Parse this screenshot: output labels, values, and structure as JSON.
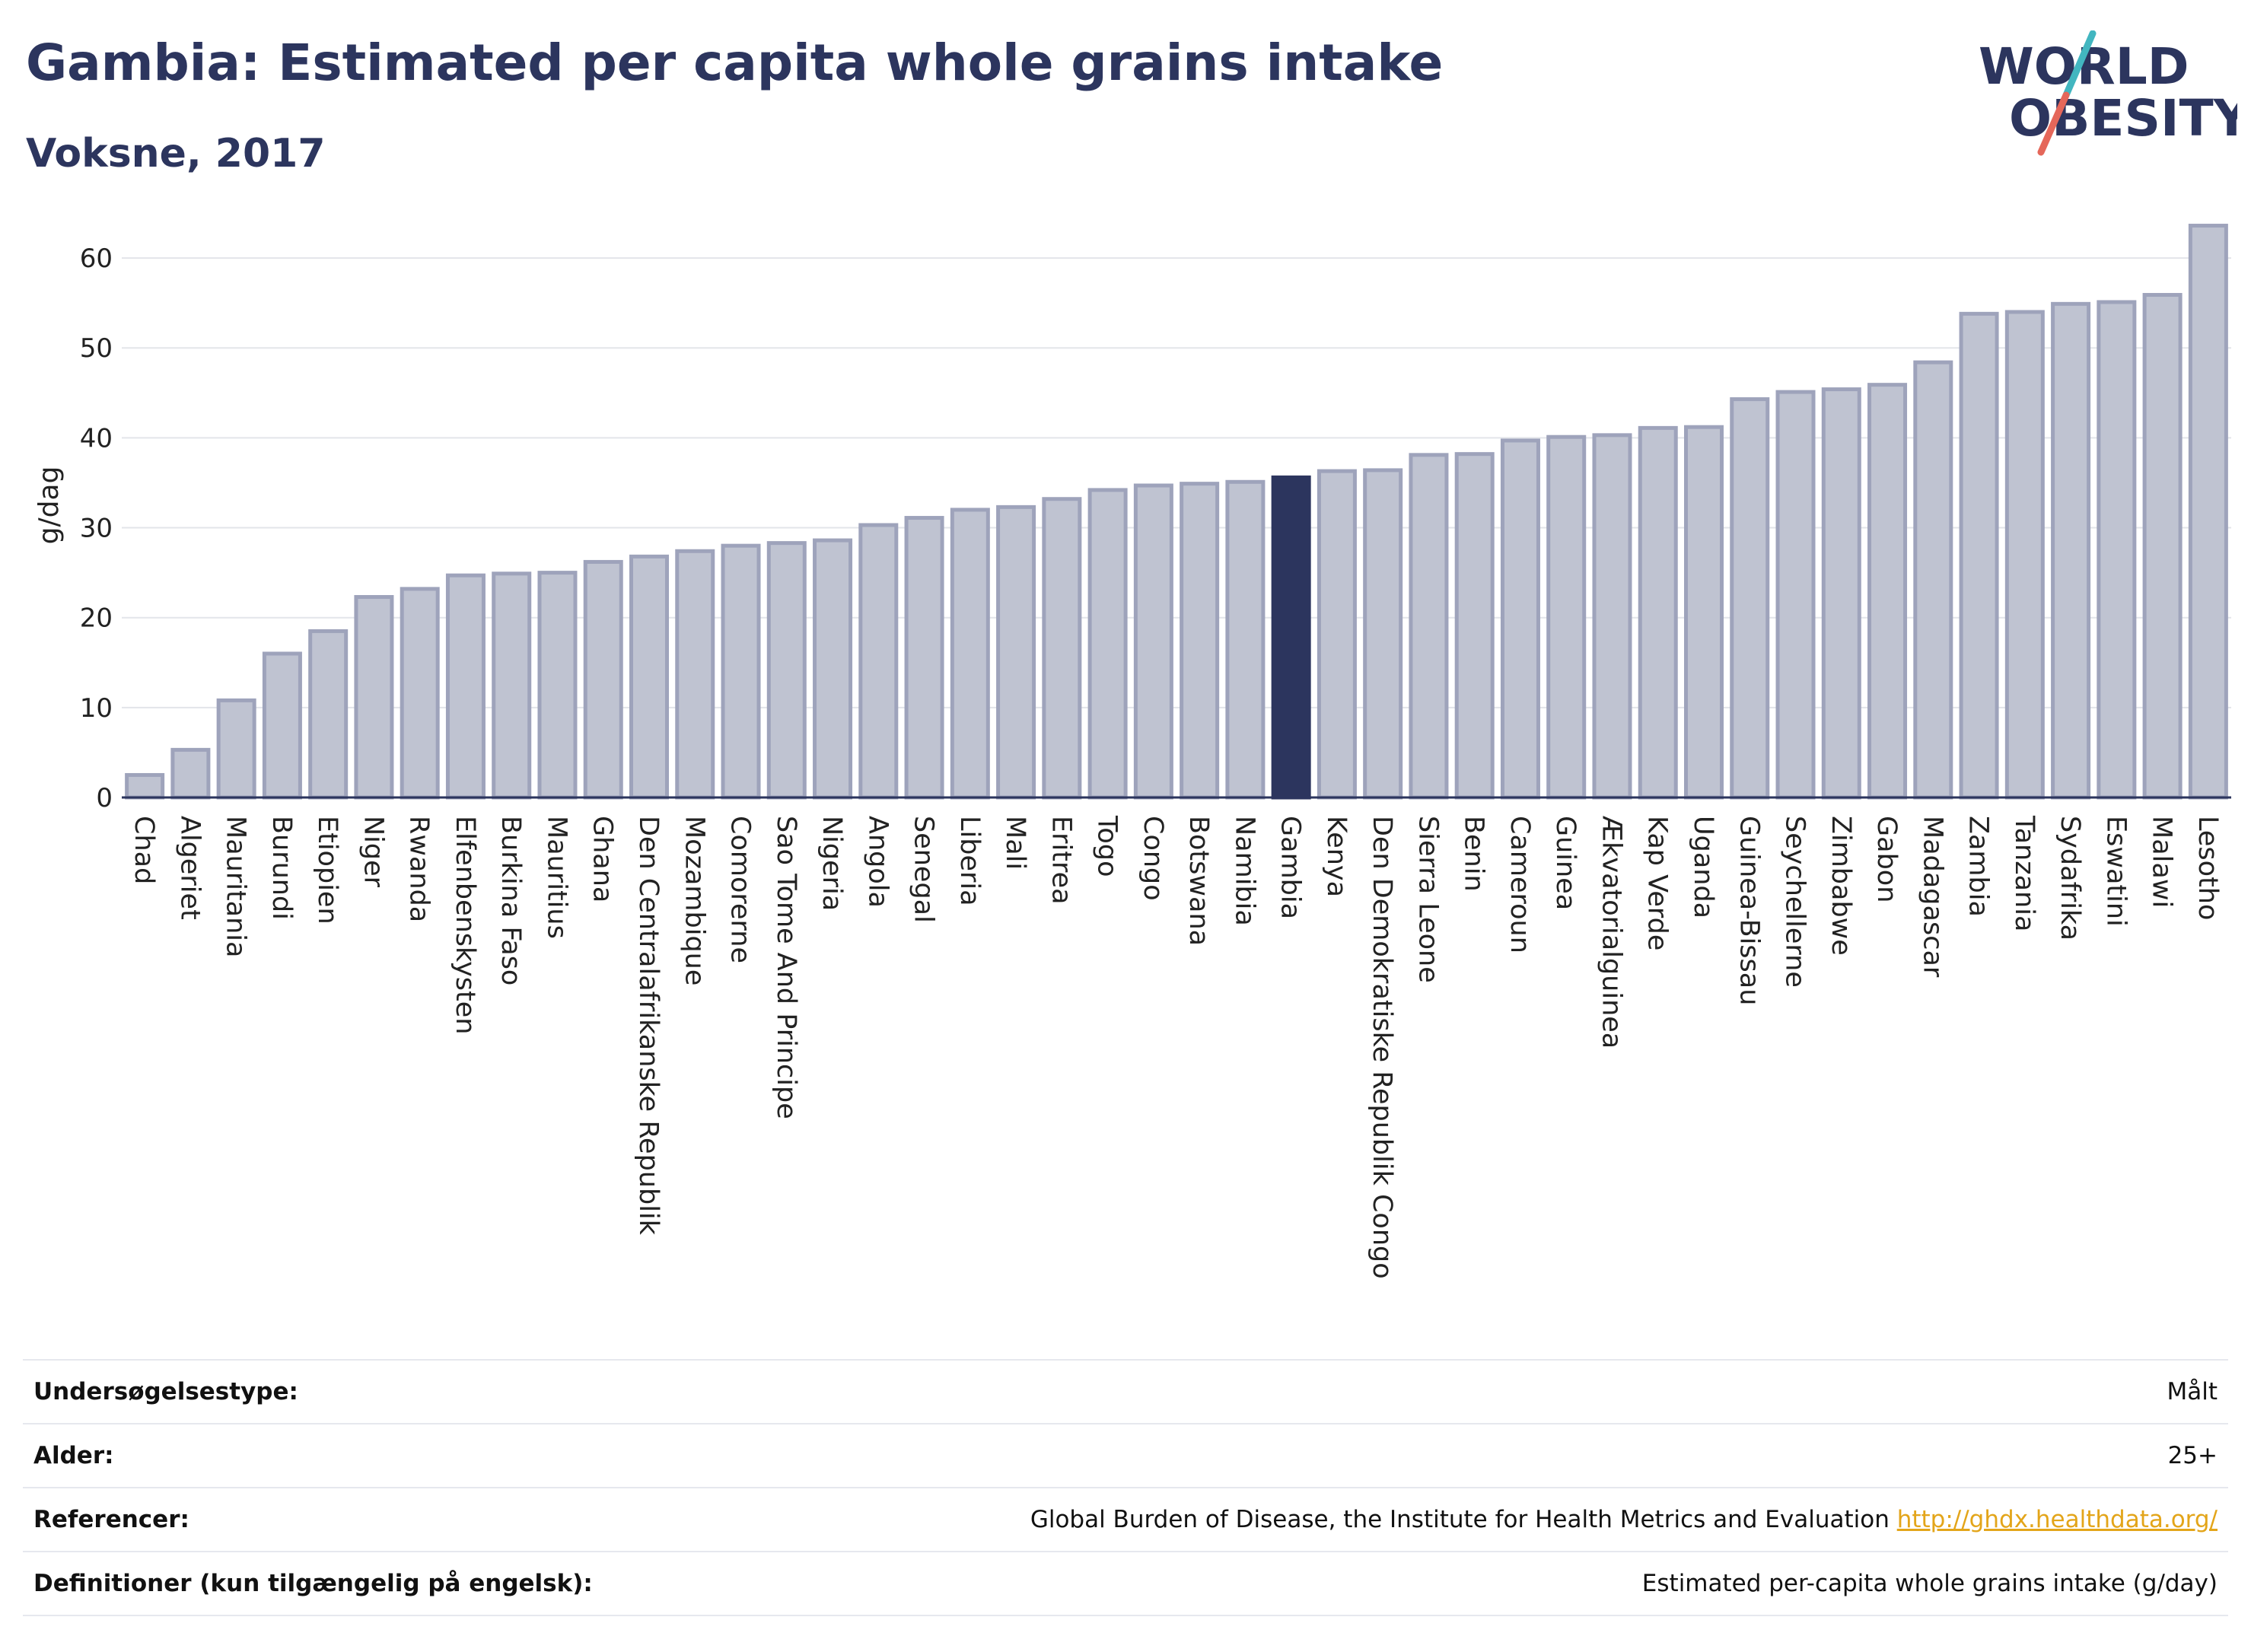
{
  "header": {
    "title": "Gambia: Estimated per capita whole grains intake",
    "subtitle": "Voksne, 2017",
    "logo": {
      "line1": "WORLD",
      "line2": "OBESITY"
    }
  },
  "colors": {
    "bar_fill": "#bfc3d1",
    "bar_stroke": "#9ea3bb",
    "highlight": "#2c355e",
    "logo_slash_top": "#42b6c0",
    "logo_slash_bottom": "#e5675a"
  },
  "chart_data": {
    "type": "bar",
    "title": "Gambia: Estimated per capita whole grains intake",
    "subtitle": "Voksne, 2017",
    "ylabel": "g/dag",
    "xlabel": "",
    "ylim": [
      0,
      65
    ],
    "yticks": [
      0,
      10,
      20,
      30,
      40,
      50,
      60
    ],
    "grid": true,
    "highlight": "Gambia",
    "categories": [
      "Chad",
      "Algeriet",
      "Mauritania",
      "Burundi",
      "Etiopien",
      "Niger",
      "Rwanda",
      "Elfenbenskysten",
      "Burkina Faso",
      "Mauritius",
      "Ghana",
      "Den Centralafrikanske Republik",
      "Mozambique",
      "Comorerne",
      "Sao Tome And Principe",
      "Nigeria",
      "Angola",
      "Senegal",
      "Liberia",
      "Mali",
      "Eritrea",
      "Togo",
      "Congo",
      "Botswana",
      "Namibia",
      "Gambia",
      "Kenya",
      "Den Demokratiske Republik Congo",
      "Sierra Leone",
      "Benin",
      "Cameroun",
      "Guinea",
      "Ækvatorialguinea",
      "Kap Verde",
      "Uganda",
      "Guinea-Bissau",
      "Seychellerne",
      "Zimbabwe",
      "Gabon",
      "Madagascar",
      "Zambia",
      "Tanzania",
      "Sydafrika",
      "Eswatini",
      "Malawi",
      "Lesotho"
    ],
    "values": [
      2.5,
      5.3,
      10.8,
      16.0,
      18.5,
      22.3,
      23.2,
      24.7,
      24.9,
      25.0,
      26.2,
      26.8,
      27.4,
      28.0,
      28.3,
      28.6,
      30.3,
      31.1,
      32.0,
      32.3,
      33.2,
      34.2,
      34.7,
      34.9,
      35.1,
      35.6,
      36.3,
      36.4,
      38.1,
      38.2,
      39.7,
      40.1,
      40.3,
      41.1,
      41.2,
      44.3,
      45.1,
      45.4,
      45.9,
      48.4,
      53.8,
      54.0,
      54.9,
      55.1,
      55.9,
      63.6
    ]
  },
  "info": {
    "rows": [
      {
        "key": "Undersøgelsestype:",
        "value": "Målt"
      },
      {
        "key": "Alder:",
        "value": "25+"
      },
      {
        "key": "Referencer:",
        "value": "Global Burden of Disease, the Institute for Health Metrics and Evaluation",
        "link": "http://ghdx.healthdata.org/"
      },
      {
        "key": "Definitioner (kun tilgængelig på engelsk):",
        "value": "Estimated per-capita whole grains intake (g/day)"
      }
    ]
  }
}
